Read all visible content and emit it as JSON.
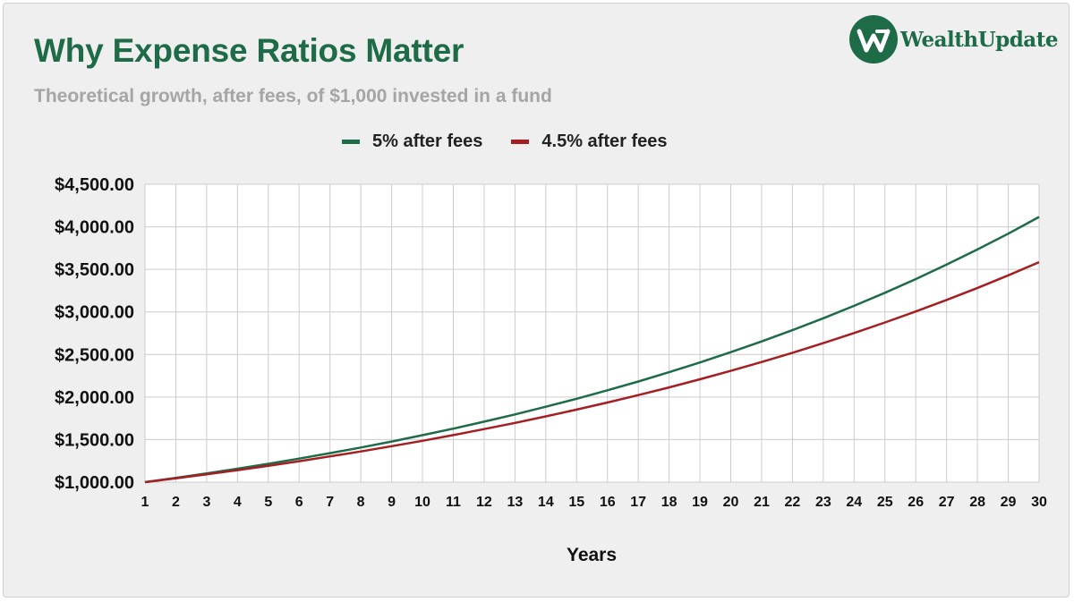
{
  "brand": {
    "name": "WealthUpdate",
    "logo_icon": "wealthupdate-w-logo-icon"
  },
  "chart_data": {
    "type": "line",
    "title": "Why Expense Ratios Matter",
    "subtitle": "Theoretical growth, after fees, of $1,000 invested in a fund",
    "xlabel": "Years",
    "ylabel": "",
    "xlim": [
      1,
      30
    ],
    "ylim": [
      1000,
      4500
    ],
    "yticks": [
      1000,
      1500,
      2000,
      2500,
      3000,
      3500,
      4000,
      4500
    ],
    "ytick_labels": [
      "$1,000.00",
      "$1,500.00",
      "$2,000.00",
      "$2,500.00",
      "$3,000.00",
      "$3,500.00",
      "$4,000.00",
      "$4,500.00"
    ],
    "x": [
      1,
      2,
      3,
      4,
      5,
      6,
      7,
      8,
      9,
      10,
      11,
      12,
      13,
      14,
      15,
      16,
      17,
      18,
      19,
      20,
      21,
      22,
      23,
      24,
      25,
      26,
      27,
      28,
      29,
      30
    ],
    "grid": true,
    "legend_position": "top-center",
    "series": [
      {
        "name": "5% after fees",
        "color": "#1e6b48",
        "values": [
          1000.0,
          1050.0,
          1102.5,
          1157.63,
          1215.51,
          1276.28,
          1340.1,
          1407.1,
          1477.46,
          1551.33,
          1628.89,
          1710.34,
          1795.86,
          1885.65,
          1979.93,
          2078.93,
          2182.87,
          2292.02,
          2406.62,
          2526.95,
          2653.3,
          2785.96,
          2925.26,
          3071.52,
          3225.1,
          3386.35,
          3555.67,
          3733.46,
          3920.13,
          4116.14
        ]
      },
      {
        "name": "4.5% after fees",
        "color": "#a51e22",
        "values": [
          1000.0,
          1045.0,
          1092.03,
          1141.17,
          1192.52,
          1246.18,
          1302.26,
          1360.86,
          1422.1,
          1486.1,
          1552.97,
          1622.85,
          1695.88,
          1772.2,
          1851.94,
          1935.28,
          2022.37,
          2113.38,
          2208.48,
          2307.86,
          2411.71,
          2520.24,
          2633.65,
          2752.17,
          2876.01,
          3005.43,
          3140.68,
          3282.01,
          3429.7,
          3584.04
        ]
      }
    ]
  }
}
